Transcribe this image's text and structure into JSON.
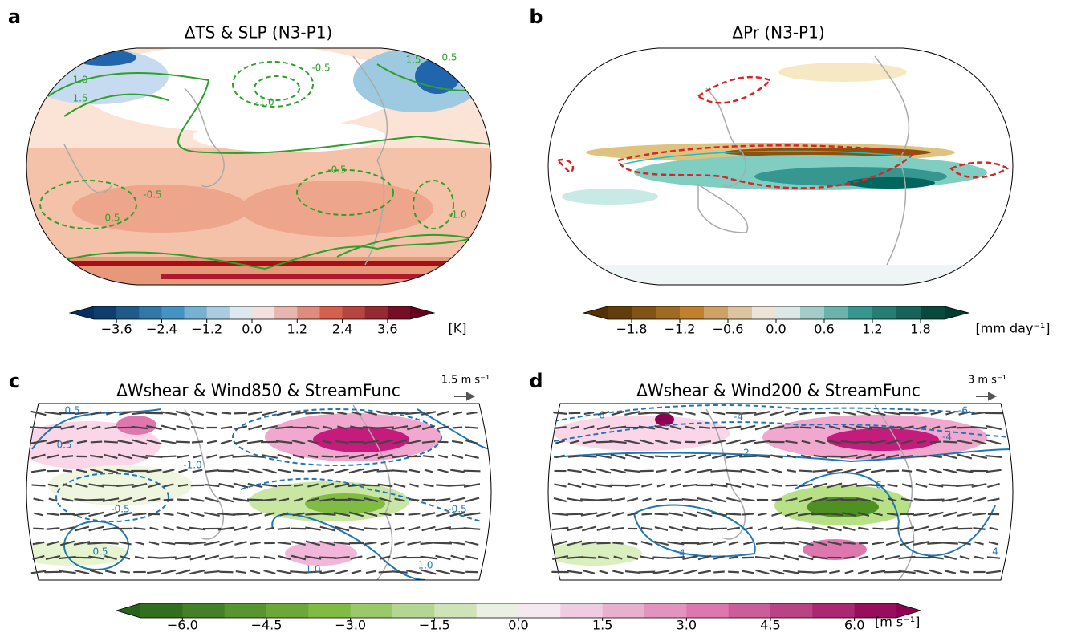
{
  "panels": [
    {
      "letter": "a",
      "title": "ΔTS & SLP (N3-P1)",
      "contour_labels": [
        "0.5",
        "1.0",
        "1.5",
        "-0.5",
        "-1.0",
        "1.5",
        "-0.5",
        "-1.0",
        "0.5",
        "-0.5"
      ]
    },
    {
      "letter": "b",
      "title": "ΔPr (N3-P1)"
    },
    {
      "letter": "c",
      "title": "ΔWshear & Wind850 & StreamFunc",
      "scale_label": "1.5 m s⁻¹",
      "contour_labels": [
        "0.5",
        "-1.0",
        "-0.5",
        "1.0",
        "-0.5",
        "0.5",
        "1.0",
        "0.5"
      ]
    },
    {
      "letter": "d",
      "title": "ΔWshear & Wind200 & StreamFunc",
      "scale_label": "3 m s⁻¹",
      "contour_labels": [
        "6",
        "-4",
        "-6",
        "2",
        "6",
        "4",
        "-4",
        "4"
      ]
    }
  ],
  "colorbars": [
    {
      "lim": [
        -4.2,
        4.2
      ],
      "ticks": [
        {
          "value": -3.6,
          "label": "−3.6"
        },
        {
          "value": -2.4,
          "label": "−2.4"
        },
        {
          "value": -1.2,
          "label": "−1.2"
        },
        {
          "value": 0,
          "label": "0.0"
        },
        {
          "value": 1.2,
          "label": "1.2"
        },
        {
          "value": 2.4,
          "label": "2.4"
        },
        {
          "value": 3.6,
          "label": "3.6"
        }
      ],
      "unit": "[K]",
      "colors": [
        "#053061",
        "#4393c3",
        "#f7f7f7",
        "#d6604d",
        "#67001f"
      ]
    },
    {
      "lim": [
        -2.1,
        2.1
      ],
      "ticks": [
        {
          "value": -1.8,
          "label": "−1.8"
        },
        {
          "value": -1.2,
          "label": "−1.2"
        },
        {
          "value": -0.6,
          "label": "−0.6"
        },
        {
          "value": 0,
          "label": "0.0"
        },
        {
          "value": 0.6,
          "label": "0.6"
        },
        {
          "value": 1.2,
          "label": "1.2"
        },
        {
          "value": 1.8,
          "label": "1.8"
        }
      ],
      "unit": "[mm day⁻¹]",
      "colors": [
        "#543005",
        "#bf812d",
        "#f5f5f5",
        "#35978f",
        "#003c30"
      ]
    },
    {
      "lim": [
        -6.75,
        6.75
      ],
      "ticks": [
        {
          "value": -6,
          "label": "−6.0"
        },
        {
          "value": -4.5,
          "label": "−4.5"
        },
        {
          "value": -3,
          "label": "−3.0"
        },
        {
          "value": -1.5,
          "label": "−1.5"
        },
        {
          "value": 0,
          "label": "0.0"
        },
        {
          "value": 1.5,
          "label": "1.5"
        },
        {
          "value": 3,
          "label": "3.0"
        },
        {
          "value": 4.5,
          "label": "4.5"
        },
        {
          "value": 6,
          "label": "6.0"
        }
      ],
      "unit": "[m s⁻¹]",
      "colors": [
        "#276419",
        "#7fbc41",
        "#f7f7f7",
        "#de77ae",
        "#8e0152"
      ]
    }
  ]
}
